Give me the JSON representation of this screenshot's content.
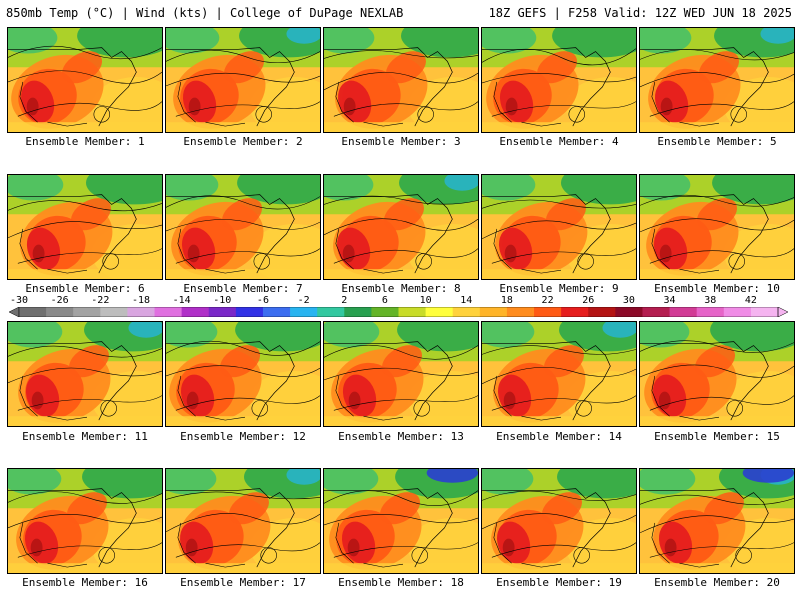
{
  "header": {
    "title_left": "850mb Temp (°C) | Wind (kts) | College of DuPage NEXLAB",
    "title_right": "18Z GEFS | F258 Valid: 12Z WED JUN 18 2025"
  },
  "panels": [
    {
      "label": "Ensemble Member: 1"
    },
    {
      "label": "Ensemble Member: 2"
    },
    {
      "label": "Ensemble Member: 3"
    },
    {
      "label": "Ensemble Member: 4"
    },
    {
      "label": "Ensemble Member: 5"
    },
    {
      "label": "Ensemble Member: 6"
    },
    {
      "label": "Ensemble Member: 7"
    },
    {
      "label": "Ensemble Member: 8"
    },
    {
      "label": "Ensemble Member: 9"
    },
    {
      "label": "Ensemble Member: 10"
    },
    {
      "label": "Ensemble Member: 11"
    },
    {
      "label": "Ensemble Member: 12"
    },
    {
      "label": "Ensemble Member: 13"
    },
    {
      "label": "Ensemble Member: 14"
    },
    {
      "label": "Ensemble Member: 15"
    },
    {
      "label": "Ensemble Member: 16"
    },
    {
      "label": "Ensemble Member: 17"
    },
    {
      "label": "Ensemble Member: 18"
    },
    {
      "label": "Ensemble Member: 19"
    },
    {
      "label": "Ensemble Member: 20"
    }
  ],
  "colorbar": {
    "tick_labels": [
      "-30",
      "-26",
      "-22",
      "-18",
      "-14",
      "-10",
      "-6",
      "-2",
      "2",
      "6",
      "10",
      "14",
      "18",
      "22",
      "26",
      "30",
      "34",
      "38",
      "42"
    ],
    "colors": [
      "#707070",
      "#8a8a8a",
      "#a3a3a3",
      "#bdbdbd",
      "#d9a6e0",
      "#e070e0",
      "#b030c8",
      "#7a28c8",
      "#3232e6",
      "#3c6ef0",
      "#28b4f0",
      "#32c8a0",
      "#28a050",
      "#64b428",
      "#c8dc28",
      "#ffff3c",
      "#ffd23c",
      "#ffb428",
      "#ff8c1e",
      "#ff5a14",
      "#e61e1e",
      "#b41414",
      "#8c0a28",
      "#b41e50",
      "#d23c96",
      "#e664c8",
      "#f08ce6",
      "#f5b4f0"
    ]
  }
}
